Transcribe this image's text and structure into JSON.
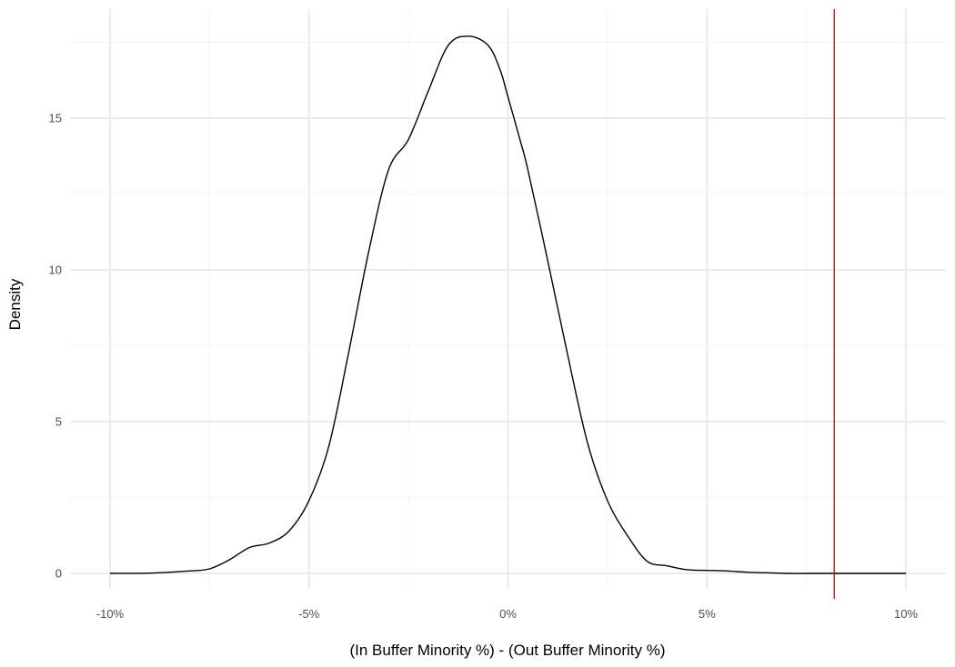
{
  "chart_data": {
    "type": "line",
    "subtype": "density",
    "title": "",
    "xlabel": "(In Buffer Minority %) - (Out Buffer Minority %)",
    "ylabel": "Density",
    "xlim": [
      -0.1,
      0.1
    ],
    "ylim": [
      0,
      17.8
    ],
    "x_ticks": [
      -0.1,
      -0.05,
      0.0,
      0.05,
      0.1
    ],
    "x_tick_labels": [
      "-10%",
      "-5%",
      "0%",
      "5%",
      "10%"
    ],
    "x_minor_ticks": [
      -0.075,
      -0.025,
      0.025,
      0.075
    ],
    "y_ticks": [
      0,
      5,
      10,
      15
    ],
    "y_tick_labels": [
      "0",
      "5",
      "10",
      "15"
    ],
    "y_minor_ticks": [
      2.5,
      7.5,
      12.5,
      17.5
    ],
    "grid": true,
    "legend": "none",
    "series": [
      {
        "color": "#000000",
        "x": [
          -0.1,
          -0.09,
          -0.08,
          -0.075,
          -0.07,
          -0.065,
          -0.06,
          -0.055,
          -0.05,
          -0.045,
          -0.04,
          -0.035,
          -0.03,
          -0.025,
          -0.02,
          -0.015,
          -0.01,
          -0.005,
          -0.002,
          0.0,
          0.003,
          0.005,
          0.01,
          0.015,
          0.02,
          0.025,
          0.03,
          0.035,
          0.04,
          0.045,
          0.05,
          0.055,
          0.06,
          0.065,
          0.07,
          0.075,
          0.08,
          0.085,
          0.09,
          0.095,
          0.1
        ],
        "y": [
          0.0,
          0.01,
          0.08,
          0.15,
          0.45,
          0.85,
          1.0,
          1.4,
          2.4,
          4.2,
          7.3,
          10.6,
          13.3,
          14.3,
          15.9,
          17.4,
          17.7,
          17.4,
          16.6,
          15.7,
          14.3,
          13.3,
          10.3,
          7.2,
          4.3,
          2.4,
          1.25,
          0.4,
          0.25,
          0.12,
          0.1,
          0.08,
          0.04,
          0.02,
          0.0,
          0.0,
          0.0,
          0.0,
          0.0,
          0.0,
          0.0
        ]
      }
    ],
    "reference_lines": [
      {
        "axis": "x",
        "value": 0.082,
        "color": "#e00000"
      }
    ]
  },
  "colors": {
    "background": "#ffffff",
    "grid_major": "#ebebeb",
    "grid_minor": "#f4f4f4",
    "curve": "#000000",
    "reference_line": "#e00000",
    "tick_text": "#4d4d4d",
    "axis_title": "#000000"
  }
}
